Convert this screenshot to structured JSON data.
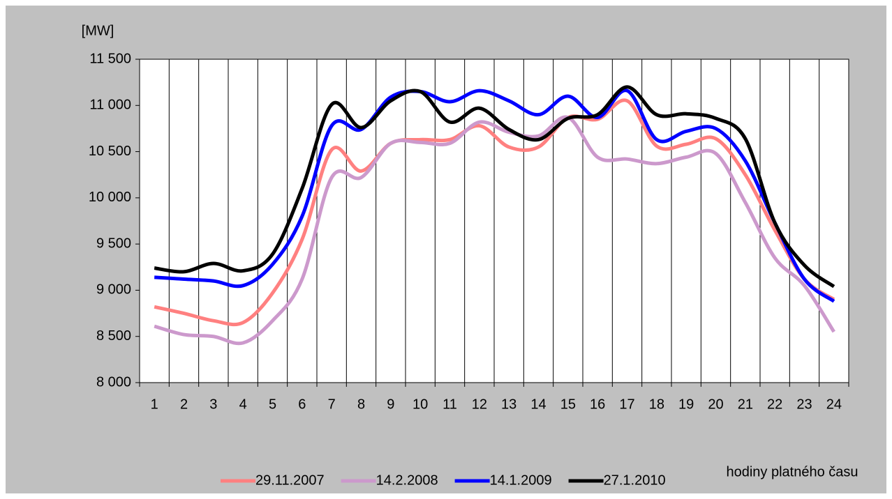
{
  "chart_data": {
    "type": "line",
    "y_axis_label": "[MW]",
    "x_axis_label": "hodiny platného času",
    "categories": [
      "1",
      "2",
      "3",
      "4",
      "5",
      "6",
      "7",
      "8",
      "9",
      "10",
      "11",
      "12",
      "13",
      "14",
      "15",
      "16",
      "17",
      "18",
      "19",
      "20",
      "21",
      "22",
      "23",
      "24"
    ],
    "series": [
      {
        "name": "29.11.2007",
        "color": "#ff8080",
        "values": [
          8820,
          8750,
          8670,
          8650,
          8970,
          9550,
          10520,
          10290,
          10590,
          10630,
          10630,
          10780,
          10550,
          10550,
          10870,
          10850,
          11050,
          10560,
          10580,
          10640,
          10250,
          9650,
          9120,
          8900
        ]
      },
      {
        "name": "14.2.2008",
        "color": "#cc99cc",
        "values": [
          8610,
          8520,
          8500,
          8430,
          8670,
          9120,
          10220,
          10220,
          10590,
          10600,
          10590,
          10820,
          10710,
          10670,
          10870,
          10440,
          10420,
          10370,
          10440,
          10480,
          9950,
          9350,
          9050,
          8550
        ]
      },
      {
        "name": "14.1.2009",
        "color": "#0000ff",
        "values": [
          9140,
          9120,
          9100,
          9050,
          9280,
          9800,
          10780,
          10740,
          11090,
          11150,
          11040,
          11160,
          11050,
          10900,
          11100,
          10870,
          11160,
          10630,
          10720,
          10750,
          10400,
          9730,
          9120,
          8880
        ]
      },
      {
        "name": "27.1.2010",
        "color": "#000000",
        "values": [
          9240,
          9200,
          9290,
          9210,
          9390,
          10100,
          11010,
          10760,
          11050,
          11150,
          10820,
          10970,
          10740,
          10630,
          10860,
          10900,
          11200,
          10900,
          10910,
          10860,
          10640,
          9730,
          9270,
          9040
        ]
      }
    ],
    "ylim": [
      8000,
      11500
    ],
    "yticks": [
      {
        "value": 8000,
        "label": "8 000"
      },
      {
        "value": 8500,
        "label": "8 500"
      },
      {
        "value": 9000,
        "label": "9 000"
      },
      {
        "value": 9500,
        "label": "9 500"
      },
      {
        "value": 10000,
        "label": "10 000"
      },
      {
        "value": 10500,
        "label": "10 500"
      },
      {
        "value": 11000,
        "label": "11 000"
      },
      {
        "value": 11500,
        "label": "11 500"
      }
    ],
    "grid": true,
    "legend": "bottom"
  }
}
